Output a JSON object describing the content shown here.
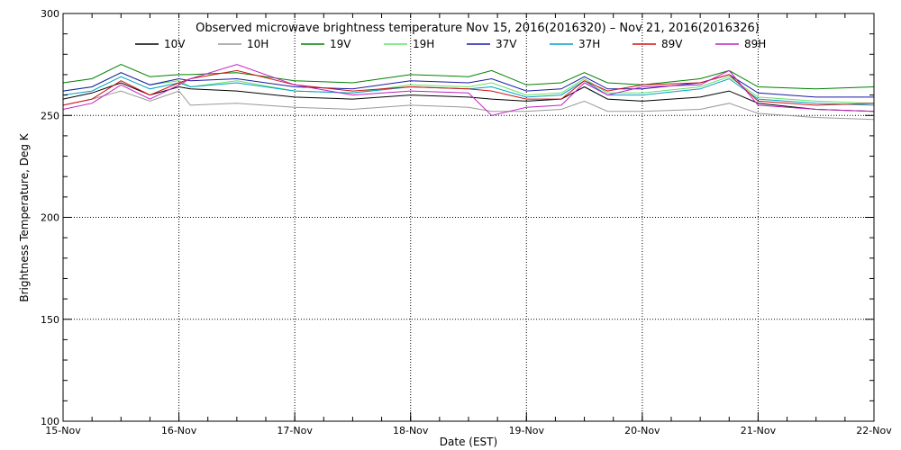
{
  "chart_data": {
    "type": "line",
    "title": "Observed microwave brightness temperature Nov 15, 2016(2016320) – Nov 21, 2016(2016326)",
    "xlabel": "Date (EST)",
    "ylabel": "Brightness Temperature, Deg K",
    "xlim": [
      0,
      7
    ],
    "ylim": [
      100,
      300
    ],
    "x_ticks": [
      {
        "x": 0,
        "label": "15-Nov"
      },
      {
        "x": 1,
        "label": "16-Nov"
      },
      {
        "x": 2,
        "label": "17-Nov"
      },
      {
        "x": 3,
        "label": "18-Nov"
      },
      {
        "x": 4,
        "label": "19-Nov"
      },
      {
        "x": 5,
        "label": "20-Nov"
      },
      {
        "x": 6,
        "label": "21-Nov"
      },
      {
        "x": 7,
        "label": "22-Nov"
      }
    ],
    "y_ticks": [
      100,
      150,
      200,
      250,
      300
    ],
    "grid": true,
    "legend_position": "top",
    "x": [
      0,
      0.25,
      0.5,
      0.75,
      1.0,
      1.1,
      1.5,
      2.0,
      2.5,
      3.0,
      3.5,
      3.7,
      4.0,
      4.3,
      4.5,
      4.7,
      5.0,
      5.5,
      5.75,
      6.0,
      6.5,
      7.0
    ],
    "series": [
      {
        "name": "10V",
        "color": "#000000",
        "values": [
          258,
          261,
          266,
          260,
          264,
          263,
          262,
          259,
          258,
          260,
          259,
          258,
          257,
          258,
          264,
          258,
          257,
          259,
          262,
          256,
          253,
          252
        ]
      },
      {
        "name": "10H",
        "color": "#999999",
        "values": [
          255,
          258,
          262,
          257,
          262,
          255,
          256,
          254,
          253,
          255,
          254,
          252,
          252,
          253,
          257,
          252,
          252,
          253,
          256,
          251,
          249,
          248
        ]
      },
      {
        "name": "19V",
        "color": "#008000",
        "values": [
          266,
          268,
          275,
          269,
          270,
          270,
          271,
          267,
          266,
          270,
          269,
          272,
          265,
          266,
          271,
          266,
          265,
          268,
          272,
          264,
          263,
          264
        ]
      },
      {
        "name": "19H",
        "color": "#66e066",
        "values": [
          262,
          264,
          271,
          265,
          267,
          264,
          267,
          262,
          261,
          265,
          264,
          266,
          260,
          261,
          268,
          261,
          261,
          264,
          269,
          259,
          257,
          256
        ]
      },
      {
        "name": "37V",
        "color": "#1a1aa6",
        "values": [
          262,
          264,
          271,
          265,
          268,
          267,
          268,
          264,
          263,
          267,
          266,
          268,
          262,
          263,
          269,
          263,
          263,
          266,
          270,
          261,
          259,
          259
        ]
      },
      {
        "name": "37H",
        "color": "#00a0c8",
        "values": [
          260,
          262,
          269,
          263,
          266,
          264,
          266,
          262,
          261,
          264,
          263,
          264,
          259,
          260,
          267,
          260,
          260,
          263,
          268,
          258,
          256,
          255
        ]
      },
      {
        "name": "89V",
        "color": "#d01010",
        "values": [
          255,
          258,
          267,
          260,
          266,
          268,
          272,
          265,
          262,
          264,
          263,
          262,
          258,
          258,
          267,
          262,
          265,
          266,
          270,
          257,
          255,
          256
        ]
      },
      {
        "name": "89H",
        "color": "#c020c0",
        "values": [
          253,
          256,
          265,
          258,
          265,
          268,
          275,
          265,
          260,
          262,
          261,
          250,
          254,
          255,
          266,
          260,
          264,
          265,
          272,
          255,
          253,
          252
        ]
      }
    ]
  }
}
